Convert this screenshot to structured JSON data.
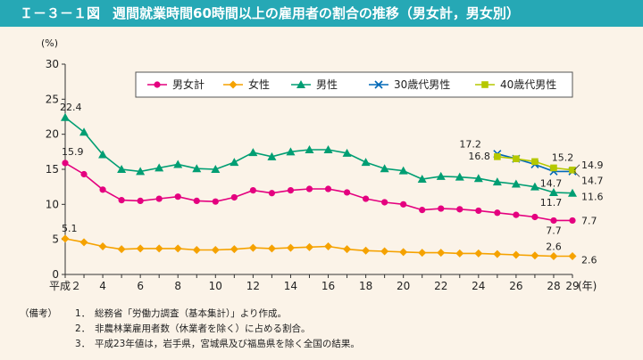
{
  "header": {
    "figure_no": "Ｉ－３－１図",
    "title": "週間就業時間60時間以上の雇用者の割合の推移（男女計，男女別）"
  },
  "chart_data": {
    "type": "line",
    "title": "週間就業時間60時間以上の雇用者の割合の推移（男女計，男女別）",
    "y_unit": "(%)",
    "x_unit": "(年)",
    "ylim": [
      0,
      30
    ],
    "y_ticks": [
      "0",
      "5",
      "10",
      "15",
      "20",
      "25",
      "30"
    ],
    "x": [
      2,
      3,
      4,
      5,
      6,
      7,
      8,
      9,
      10,
      11,
      12,
      13,
      14,
      15,
      16,
      17,
      18,
      19,
      20,
      21,
      22,
      23,
      24,
      25,
      26,
      27,
      28,
      29
    ],
    "x_tick_labels": [
      {
        "x": 2,
        "label": "平成２"
      },
      {
        "x": 4,
        "label": "4"
      },
      {
        "x": 6,
        "label": "6"
      },
      {
        "x": 8,
        "label": "8"
      },
      {
        "x": 10,
        "label": "10"
      },
      {
        "x": 12,
        "label": "12"
      },
      {
        "x": 14,
        "label": "14"
      },
      {
        "x": 16,
        "label": "16"
      },
      {
        "x": 18,
        "label": "18"
      },
      {
        "x": 20,
        "label": "20"
      },
      {
        "x": 22,
        "label": "22"
      },
      {
        "x": 24,
        "label": "24"
      },
      {
        "x": 26,
        "label": "26"
      },
      {
        "x": 28,
        "label": "28"
      },
      {
        "x": 29,
        "label": "29"
      }
    ],
    "series": [
      {
        "name": "男女計",
        "color": "#e4007f",
        "marker": "circle",
        "x": [
          2,
          3,
          4,
          5,
          6,
          7,
          8,
          9,
          10,
          11,
          12,
          13,
          14,
          15,
          16,
          17,
          18,
          19,
          20,
          21,
          22,
          23,
          24,
          25,
          26,
          27,
          28,
          29
        ],
        "values": [
          15.9,
          14.3,
          12.1,
          10.6,
          10.5,
          10.8,
          11.1,
          10.5,
          10.4,
          11.0,
          12.0,
          11.6,
          12.0,
          12.2,
          12.2,
          11.7,
          10.8,
          10.3,
          10.0,
          9.2,
          9.4,
          9.3,
          9.1,
          8.8,
          8.5,
          8.2,
          7.7,
          7.7
        ]
      },
      {
        "name": "女性",
        "color": "#f5a200",
        "marker": "diamond",
        "x": [
          2,
          3,
          4,
          5,
          6,
          7,
          8,
          9,
          10,
          11,
          12,
          13,
          14,
          15,
          16,
          17,
          18,
          19,
          20,
          21,
          22,
          23,
          24,
          25,
          26,
          27,
          28,
          29
        ],
        "values": [
          5.1,
          4.6,
          4.0,
          3.6,
          3.7,
          3.7,
          3.7,
          3.5,
          3.5,
          3.6,
          3.8,
          3.7,
          3.8,
          3.9,
          4.0,
          3.6,
          3.4,
          3.3,
          3.2,
          3.1,
          3.1,
          3.0,
          3.0,
          2.9,
          2.8,
          2.7,
          2.6,
          2.6
        ]
      },
      {
        "name": "男性",
        "color": "#009e73",
        "marker": "triangle",
        "x": [
          2,
          3,
          4,
          5,
          6,
          7,
          8,
          9,
          10,
          11,
          12,
          13,
          14,
          15,
          16,
          17,
          18,
          19,
          20,
          21,
          22,
          23,
          24,
          25,
          26,
          27,
          28,
          29
        ],
        "values": [
          22.4,
          20.3,
          17.1,
          15.0,
          14.7,
          15.2,
          15.7,
          15.1,
          15.0,
          16.0,
          17.4,
          16.8,
          17.5,
          17.8,
          17.8,
          17.3,
          16.0,
          15.1,
          14.8,
          13.6,
          14.0,
          13.9,
          13.7,
          13.2,
          12.9,
          12.5,
          11.7,
          11.6
        ]
      },
      {
        "name": "30歳代男性",
        "color": "#0068b7",
        "marker": "cross",
        "x": [
          25,
          26,
          27,
          28,
          29
        ],
        "values": [
          17.2,
          16.5,
          15.7,
          14.7,
          14.7
        ]
      },
      {
        "name": "40歳代男性",
        "color": "#b5c800",
        "marker": "square",
        "x": [
          25,
          26,
          27,
          28,
          29
        ],
        "values": [
          16.8,
          16.5,
          16.1,
          15.2,
          14.9
        ]
      }
    ],
    "data_labels": [
      {
        "text": "22.4",
        "series": "男性",
        "x": 2
      },
      {
        "text": "15.9",
        "series": "男女計",
        "x": 2
      },
      {
        "text": "5.1",
        "series": "女性",
        "x": 2
      },
      {
        "text": "17.2",
        "series": "30歳代男性",
        "x": 25
      },
      {
        "text": "16.8",
        "series": "40歳代男性",
        "x": 25
      },
      {
        "text": "15.2",
        "series": "40歳代男性",
        "x": 28
      },
      {
        "text": "14.7",
        "series": "30歳代男性",
        "x": 28
      },
      {
        "text": "11.7",
        "series": "男性",
        "x": 28
      },
      {
        "text": "7.7",
        "series": "男女計",
        "x": 28
      },
      {
        "text": "2.6",
        "series": "女性",
        "x": 28
      },
      {
        "text": "14.9",
        "series": "40歳代男性",
        "x": 29
      },
      {
        "text": "14.7",
        "series": "30歳代男性",
        "x": 29
      },
      {
        "text": "11.6",
        "series": "男性",
        "x": 29
      },
      {
        "text": "7.7",
        "series": "男女計",
        "x": 29
      },
      {
        "text": "2.6",
        "series": "女性",
        "x": 29
      }
    ],
    "legend_position": "top-right"
  },
  "notes": {
    "head": "（備考）",
    "items": [
      {
        "num": "1．",
        "text": "総務省「労働力調査（基本集計）」より作成。"
      },
      {
        "num": "2．",
        "text": "非農林業雇用者数（休業者を除く）に占める割合。"
      },
      {
        "num": "3．",
        "text": "平成23年値は，岩手県，宮城県及び福島県を除く全国の結果。"
      }
    ]
  }
}
